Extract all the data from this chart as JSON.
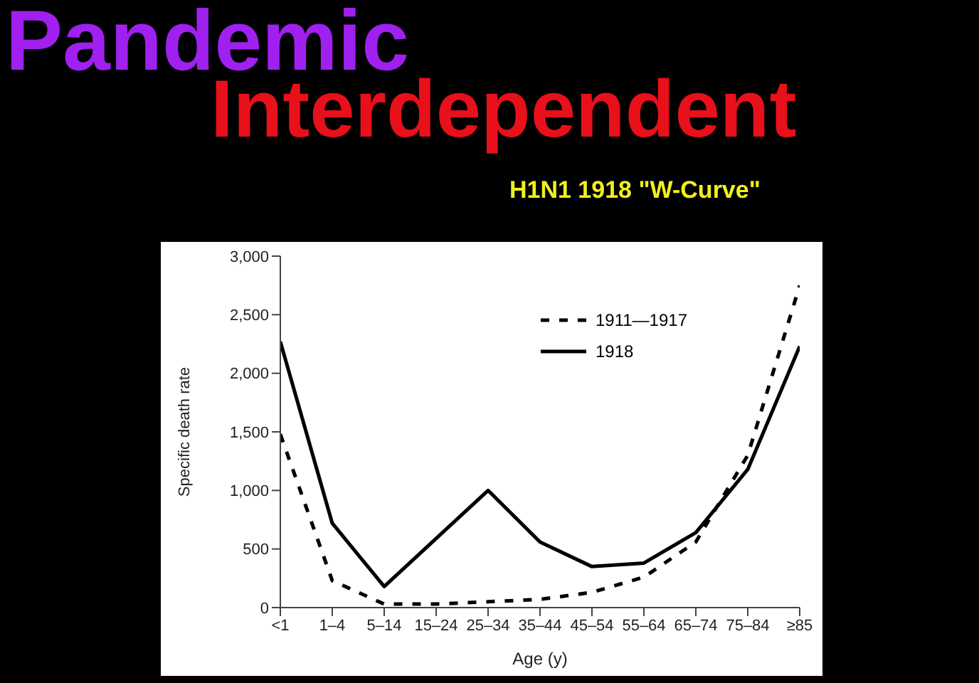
{
  "chart_data": {
    "type": "line",
    "title": "Pandemic",
    "subtitle": "Interdependent",
    "annotations": [
      "H1N1 1918 \"W-Curve\""
    ],
    "xlabel": "Age (y)",
    "ylabel": "Specific death rate",
    "categories": [
      "<1",
      "1–4",
      "5–14",
      "15–24",
      "25–34",
      "35–44",
      "45–54",
      "55–64",
      "65–74",
      "75–84",
      "≥85"
    ],
    "series": [
      {
        "name": "1911—1917",
        "color": "#000000",
        "line_style": "dashed",
        "values": [
          1480,
          230,
          30,
          30,
          50,
          70,
          130,
          260,
          560,
          1300,
          2750
        ]
      },
      {
        "name": "1918",
        "color": "#000000",
        "line_style": "solid",
        "values": [
          2270,
          720,
          180,
          590,
          1000,
          560,
          350,
          380,
          640,
          1180,
          2230
        ]
      }
    ],
    "ylim": [
      0,
      3000
    ],
    "yticks": [
      {
        "value": 0,
        "label": "0"
      },
      {
        "value": 500,
        "label": "500"
      },
      {
        "value": 1000,
        "label": "1,000"
      },
      {
        "value": 1500,
        "label": "1,500"
      },
      {
        "value": 2000,
        "label": "2,000"
      },
      {
        "value": 2500,
        "label": "2,500"
      },
      {
        "value": 3000,
        "label": "3,000"
      }
    ],
    "grid": false,
    "legend": "top right",
    "marker": "none"
  }
}
